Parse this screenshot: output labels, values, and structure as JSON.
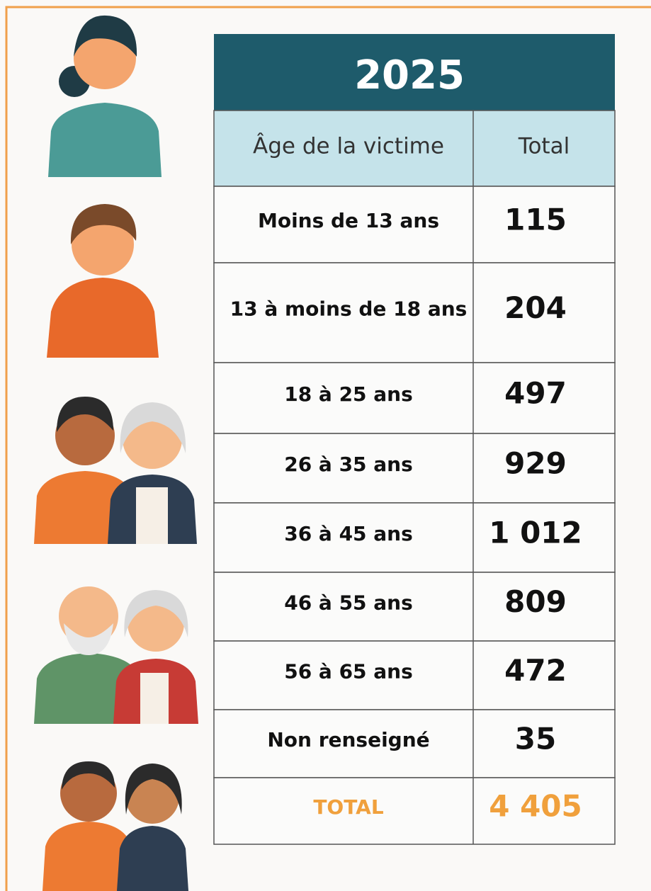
{
  "table": {
    "title": "2025",
    "headers": [
      "Âge de la victime",
      "Total"
    ],
    "rows": [
      [
        "Moins de 13 ans",
        "115"
      ],
      [
        "13 à moins de 18 ans",
        "204"
      ],
      [
        "18 à 25 ans",
        "497"
      ],
      [
        "26 à 35 ans",
        "929"
      ],
      [
        "36 à 45 ans",
        "1 012"
      ],
      [
        "46 à 55 ans",
        "809"
      ],
      [
        "56 à 65 ans",
        "472"
      ],
      [
        "Non renseigné",
        "35"
      ]
    ],
    "total": [
      "TOTAL",
      "4 405"
    ]
  }
}
